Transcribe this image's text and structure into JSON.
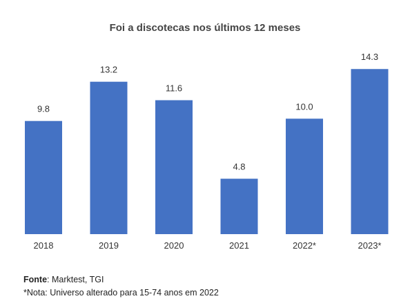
{
  "chart_data": {
    "type": "bar",
    "title": "Foi a discotecas nos últimos 12 meses",
    "categories": [
      "2018",
      "2019",
      "2020",
      "2021",
      "2022*",
      "2023*"
    ],
    "values": [
      9.8,
      13.2,
      11.6,
      4.8,
      10.0,
      14.3
    ],
    "value_labels": [
      "9.8",
      "13.2",
      "11.6",
      "4.8",
      "10.0",
      "14.3"
    ],
    "xlabel": "",
    "ylabel": "",
    "ylim": [
      0,
      16
    ],
    "grid": false,
    "bar_color": "#4472C4"
  },
  "footer": {
    "source_label": "Fonte",
    "source_text": ": Marktest, TGI",
    "note": "*Nota: Universo alterado para 15-74 anos em 2022"
  }
}
